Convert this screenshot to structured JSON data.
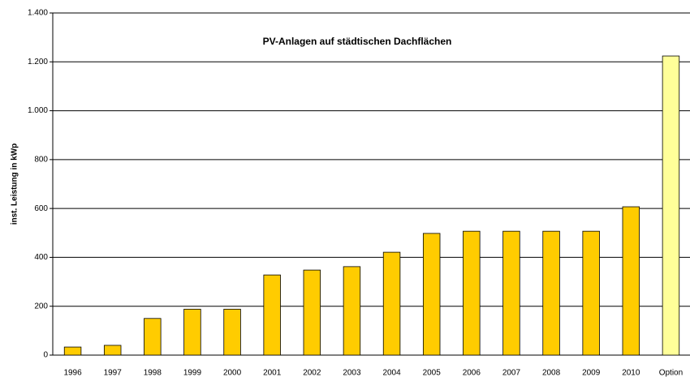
{
  "chart_data": {
    "type": "bar",
    "title": "PV-Anlagen auf städtischen Dachflächen",
    "y_label": "inst. Leistung in kWp",
    "categories": [
      "1996",
      "1997",
      "1998",
      "1999",
      "2000",
      "2001",
      "2002",
      "2003",
      "2004",
      "2005",
      "2006",
      "2007",
      "2008",
      "2009",
      "2010",
      "Option"
    ],
    "values": [
      33,
      40,
      150,
      188,
      188,
      328,
      348,
      362,
      421,
      498,
      507,
      507,
      507,
      507,
      607,
      1224
    ],
    "colors": [
      "#ffcc00",
      "#ffcc00",
      "#ffcc00",
      "#ffcc00",
      "#ffcc00",
      "#ffcc00",
      "#ffcc00",
      "#ffcc00",
      "#ffcc00",
      "#ffcc00",
      "#ffcc00",
      "#ffcc00",
      "#ffcc00",
      "#ffcc00",
      "#ffcc00",
      "#ffff99"
    ],
    "ylim": [
      0,
      1400
    ],
    "yticks": [
      0,
      200,
      400,
      600,
      800,
      {
        "value": 1000,
        "label": "1.000"
      },
      {
        "value": 1200,
        "label": "1.200"
      },
      {
        "value": 1400,
        "label": "1.400"
      }
    ],
    "grid": true
  }
}
